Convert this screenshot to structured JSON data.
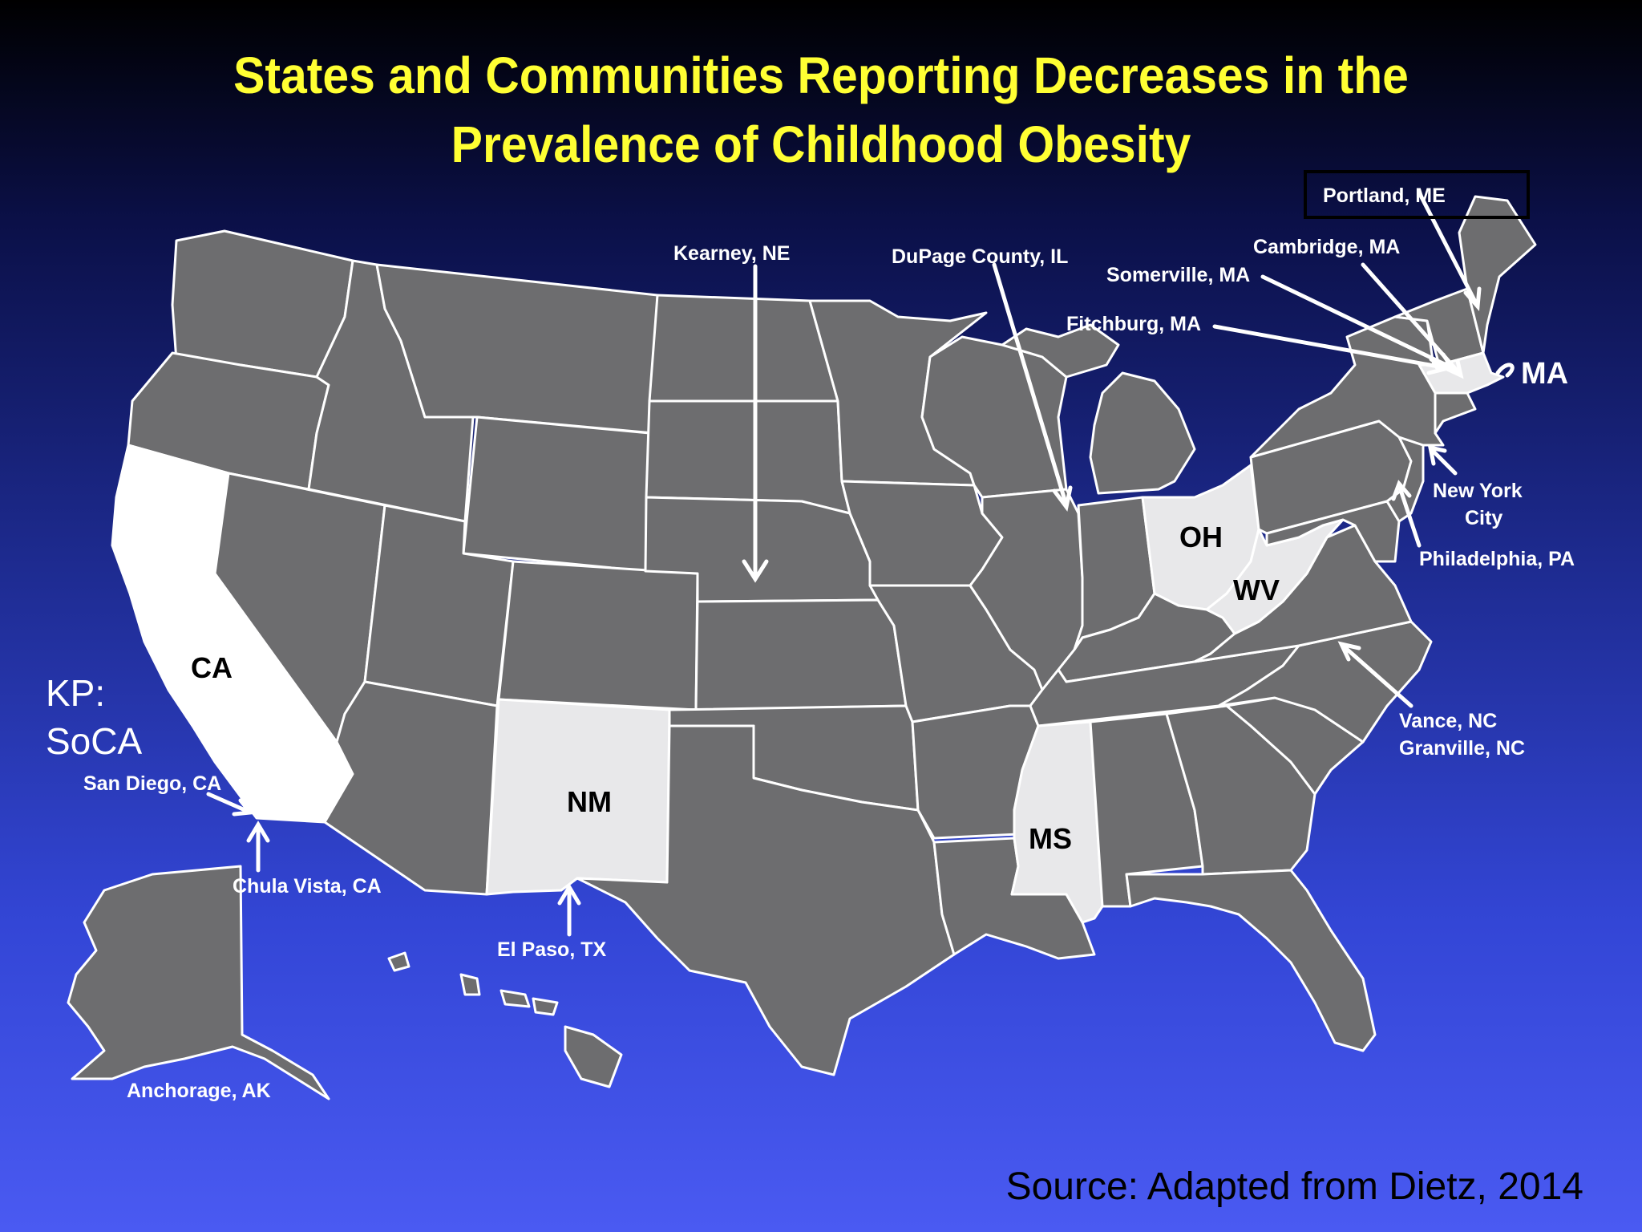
{
  "title": {
    "line1": "States and Communities Reporting Decreases in the",
    "line2": "Prevalence of Childhood Obesity"
  },
  "colors": {
    "title": "#ffff33",
    "state_default": "#6d6d6f",
    "state_highlight": "#e8e8ea",
    "state_ca": "#ffffff",
    "border": "#ffffff"
  },
  "states": {
    "ca": "CA",
    "nm": "NM",
    "ms": "MS",
    "oh": "OH",
    "wv": "WV",
    "ma": "MA"
  },
  "communities": {
    "kearney": "Kearney, NE",
    "dupage": "DuPage County, IL",
    "portland": "Portland, ME",
    "cambridge": "Cambridge, MA",
    "somerville": "Somerville, MA",
    "fitchburg": "Fitchburg, MA",
    "nyc_line1": "New York",
    "nyc_line2": "City",
    "philadelphia": "Philadelphia, PA",
    "vance": "Vance, NC",
    "granville": "Granville, NC",
    "san_diego": "San Diego, CA",
    "chula_vista": "Chula Vista, CA",
    "el_paso": "El Paso, TX",
    "anchorage": "Anchorage, AK"
  },
  "kp": {
    "line1": "KP:",
    "line2": "SoCA"
  },
  "source": "Source: Adapted from Dietz, 2014"
}
